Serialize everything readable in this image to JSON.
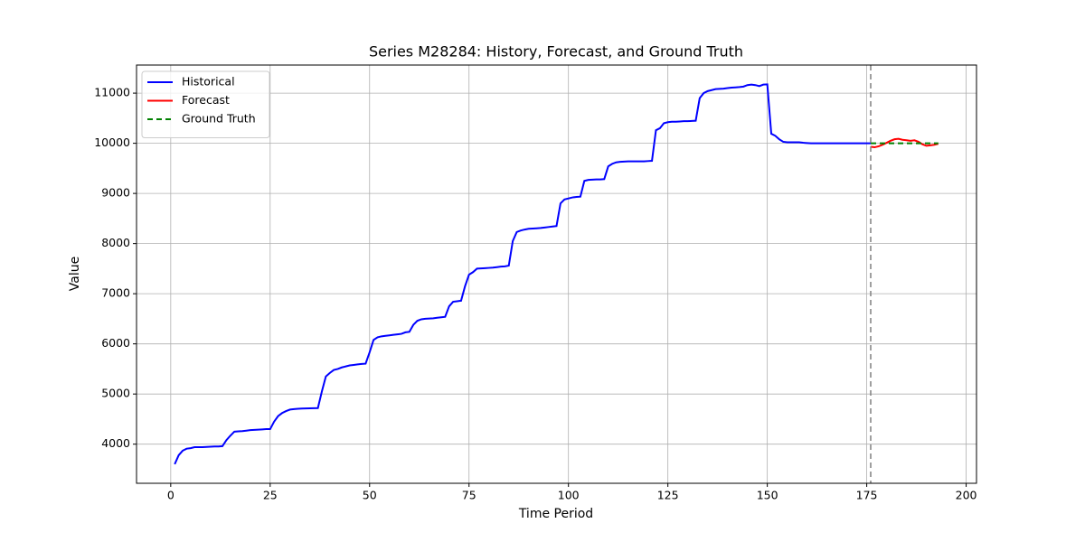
{
  "chart_data": {
    "type": "line",
    "title": "Series M28284: History, Forecast, and Ground Truth",
    "xlabel": "Time Period",
    "ylabel": "Value",
    "xlim": [
      -8.6,
      202.6
    ],
    "ylim": [
      3220,
      11560
    ],
    "xticks": [
      0,
      25,
      50,
      75,
      100,
      125,
      150,
      175,
      200
    ],
    "yticks": [
      4000,
      5000,
      6000,
      7000,
      8000,
      9000,
      10000,
      11000
    ],
    "grid": true,
    "legend": "upper left",
    "vline": {
      "x": 176,
      "color": "#808080",
      "style": "dashed"
    },
    "series": [
      {
        "name": "Historical",
        "color": "#0000ff",
        "style": "solid",
        "x": [
          1,
          2,
          3,
          4,
          5,
          6,
          7,
          8,
          9,
          10,
          11,
          12,
          13,
          14,
          15,
          16,
          17,
          18,
          19,
          20,
          21,
          22,
          23,
          24,
          25,
          26,
          27,
          28,
          29,
          30,
          31,
          32,
          33,
          34,
          35,
          36,
          37,
          38,
          39,
          40,
          41,
          42,
          43,
          44,
          45,
          46,
          47,
          48,
          49,
          50,
          51,
          52,
          53,
          54,
          55,
          56,
          57,
          58,
          59,
          60,
          61,
          62,
          63,
          64,
          65,
          66,
          67,
          68,
          69,
          70,
          71,
          72,
          73,
          74,
          75,
          76,
          77,
          78,
          79,
          80,
          81,
          82,
          83,
          84,
          85,
          86,
          87,
          88,
          89,
          90,
          91,
          92,
          93,
          94,
          95,
          96,
          97,
          98,
          99,
          100,
          101,
          102,
          103,
          104,
          105,
          106,
          107,
          108,
          109,
          110,
          111,
          112,
          113,
          114,
          115,
          116,
          117,
          118,
          119,
          120,
          121,
          122,
          123,
          124,
          125,
          126,
          127,
          128,
          129,
          130,
          131,
          132,
          133,
          134,
          135,
          136,
          137,
          138,
          139,
          140,
          141,
          142,
          143,
          144,
          145,
          146,
          147,
          148,
          149,
          150,
          151,
          152,
          153,
          154,
          155,
          156,
          157,
          158,
          159,
          160,
          161,
          162,
          163,
          164,
          165,
          166,
          167,
          168,
          169,
          170,
          171,
          172,
          173,
          174,
          175,
          176
        ],
        "values": [
          3600,
          3780,
          3870,
          3910,
          3920,
          3940,
          3940,
          3940,
          3945,
          3950,
          3955,
          3955,
          3960,
          4080,
          4170,
          4250,
          4255,
          4260,
          4270,
          4280,
          4285,
          4290,
          4295,
          4300,
          4300,
          4450,
          4560,
          4620,
          4660,
          4690,
          4700,
          4705,
          4710,
          4712,
          4715,
          4718,
          4720,
          5050,
          5350,
          5420,
          5480,
          5500,
          5530,
          5550,
          5570,
          5580,
          5590,
          5600,
          5605,
          5830,
          6080,
          6130,
          6150,
          6160,
          6170,
          6180,
          6190,
          6200,
          6230,
          6240,
          6380,
          6460,
          6490,
          6500,
          6505,
          6510,
          6520,
          6530,
          6540,
          6750,
          6840,
          6850,
          6860,
          7150,
          7380,
          7430,
          7500,
          7505,
          7510,
          7515,
          7520,
          7530,
          7540,
          7545,
          7560,
          8050,
          8230,
          8260,
          8280,
          8295,
          8300,
          8305,
          8310,
          8320,
          8330,
          8340,
          8350,
          8800,
          8880,
          8900,
          8920,
          8930,
          8935,
          9250,
          9270,
          9275,
          9280,
          9280,
          9285,
          9540,
          9590,
          9620,
          9630,
          9635,
          9640,
          9640,
          9640,
          9640,
          9640,
          9645,
          9650,
          10260,
          10300,
          10400,
          10420,
          10430,
          10430,
          10435,
          10440,
          10440,
          10445,
          10450,
          10900,
          11000,
          11040,
          11060,
          11080,
          11085,
          11090,
          11100,
          11110,
          11115,
          11120,
          11130,
          11160,
          11170,
          11160,
          11140,
          11170,
          11175,
          10190,
          10150,
          10080,
          10030,
          10020,
          10020,
          10020,
          10020,
          10010,
          10005,
          10000,
          10000,
          10000,
          10000,
          10000,
          10000,
          10000,
          10000,
          10000,
          10000,
          10000,
          10000,
          10000,
          10000,
          10000,
          10000
        ]
      },
      {
        "name": "Forecast",
        "color": "#ff0000",
        "style": "solid",
        "x": [
          176,
          177,
          178,
          179,
          180,
          181,
          182,
          183,
          184,
          185,
          186,
          187,
          188,
          189,
          190,
          191,
          192,
          193
        ],
        "values": [
          9930,
          9920,
          9940,
          9970,
          10010,
          10050,
          10080,
          10090,
          10070,
          10060,
          10050,
          10060,
          10030,
          9980,
          9950,
          9960,
          9970,
          9990
        ]
      },
      {
        "name": "Ground Truth",
        "color": "#008000",
        "style": "dashed",
        "x": [
          176,
          177,
          178,
          179,
          180,
          181,
          182,
          183,
          184,
          185,
          186,
          187,
          188,
          189,
          190,
          191,
          192,
          193
        ],
        "values": [
          10000,
          10000,
          10000,
          10000,
          10000,
          10000,
          10000,
          10000,
          10000,
          10000,
          10000,
          10000,
          10000,
          10000,
          10000,
          10000,
          10000,
          10000
        ]
      }
    ]
  }
}
